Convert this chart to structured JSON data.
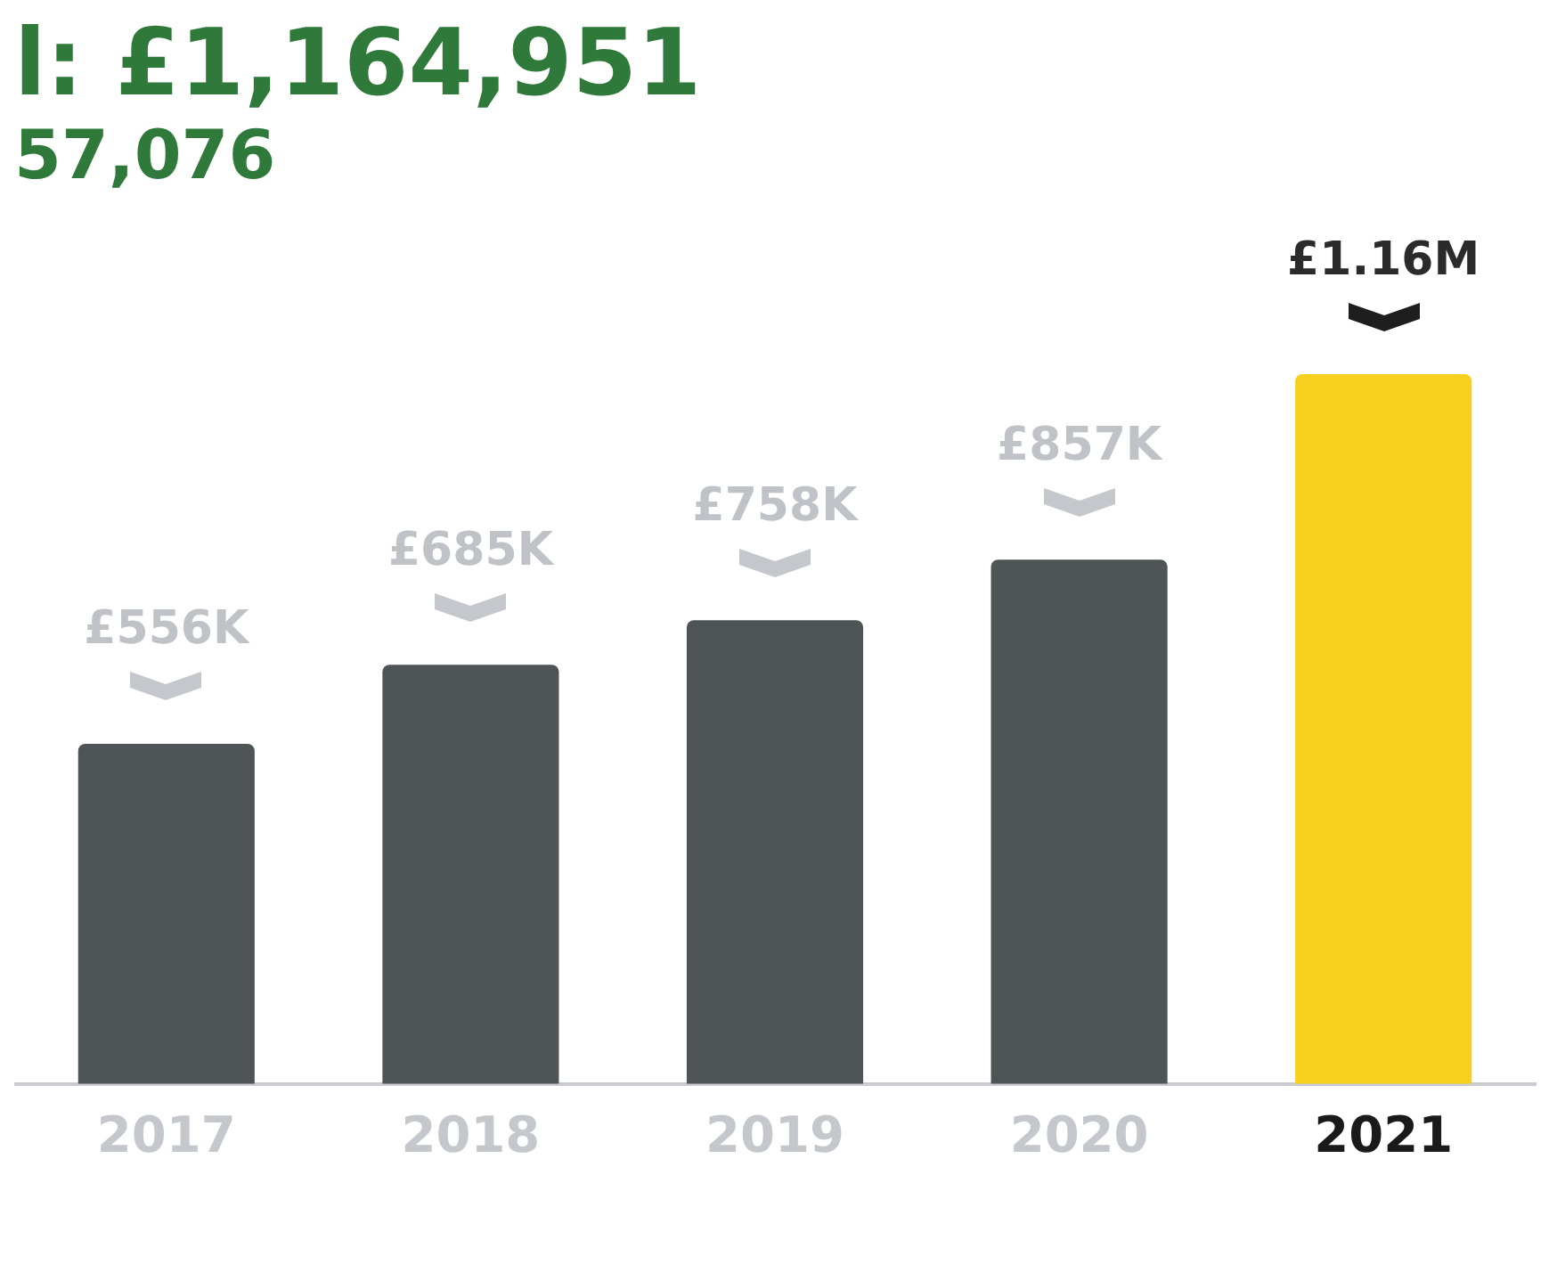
{
  "chart_data": {
    "type": "bar",
    "title": "l: £1,164,951",
    "subtitle": "57,076",
    "categories": [
      "2017",
      "2018",
      "2019",
      "2020",
      "2021"
    ],
    "values": [
      556000,
      685000,
      758000,
      857000,
      1160000
    ],
    "value_labels": [
      "£556K",
      "£685K",
      "£758K",
      "£857K",
      "£1.16M"
    ],
    "colors": [
      "#4f5456",
      "#4f5456",
      "#4f5456",
      "#4f5456",
      "#f5d01e"
    ]
  }
}
